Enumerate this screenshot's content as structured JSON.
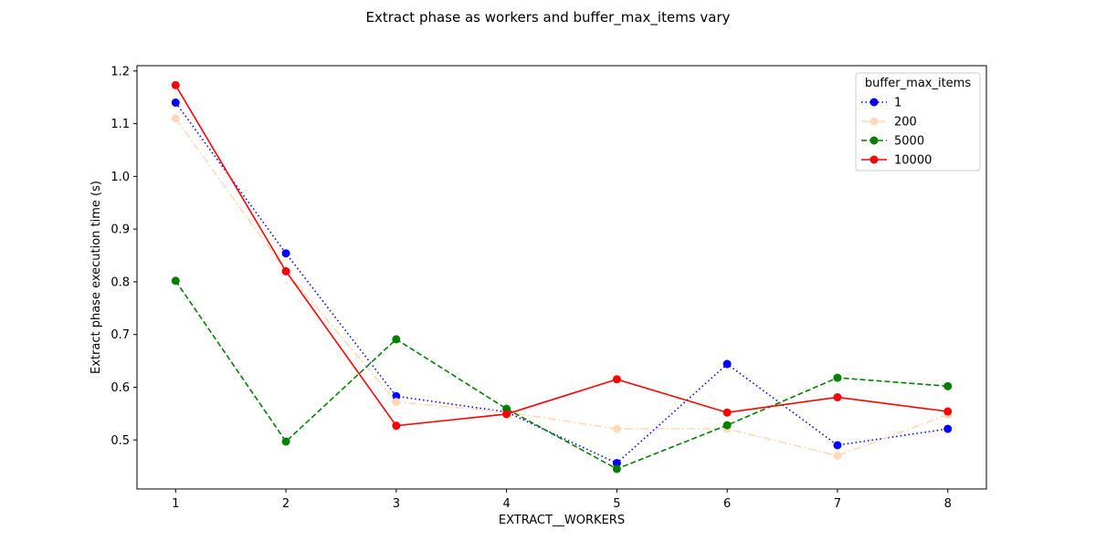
{
  "chart_data": {
    "type": "line",
    "title": "Extract phase as workers and buffer_max_items vary",
    "xlabel": "EXTRACT__WORKERS",
    "ylabel": "Extract phase execution time (s)",
    "x": [
      1,
      2,
      3,
      4,
      5,
      6,
      7,
      8
    ],
    "x_ticks": [
      "1",
      "2",
      "3",
      "4",
      "5",
      "6",
      "7",
      "8"
    ],
    "y_ticks": [
      "0.5",
      "0.6",
      "0.7",
      "0.8",
      "0.9",
      "1.0",
      "1.1",
      "1.2"
    ],
    "xlim": [
      0.65,
      8.35
    ],
    "ylim": [
      0.407,
      1.21
    ],
    "grid": false,
    "legend": {
      "title": "buffer_max_items",
      "placement": "top-right"
    },
    "series": [
      {
        "name": "1",
        "color": "#0000ff",
        "style": "dotted",
        "values": [
          1.14,
          0.854,
          0.583,
          0.553,
          0.456,
          0.644,
          0.49,
          0.521
        ]
      },
      {
        "name": "200",
        "color": "#ffdab9",
        "style": "dashdot",
        "values": [
          1.11,
          0.82,
          0.572,
          0.553,
          0.521,
          0.521,
          0.47,
          0.548
        ]
      },
      {
        "name": "5000",
        "color": "#008000",
        "style": "dashed",
        "values": [
          0.802,
          0.497,
          0.691,
          0.559,
          0.445,
          0.528,
          0.618,
          0.602
        ]
      },
      {
        "name": "10000",
        "color": "#ff0000",
        "style": "solid",
        "values": [
          1.173,
          0.82,
          0.527,
          0.549,
          0.615,
          0.552,
          0.581,
          0.554
        ]
      }
    ]
  }
}
